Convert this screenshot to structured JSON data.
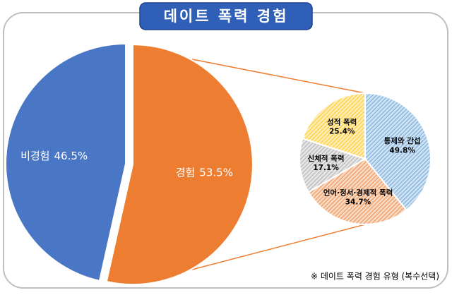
{
  "title": "데이트 폭력 경험",
  "note": "※ 데이트 폭력 경험 유형 (복수선택)",
  "chart_data": [
    {
      "type": "pie",
      "categories": [
        "비경험",
        "경험"
      ],
      "values": [
        46.5,
        53.5
      ],
      "value_labels": [
        "46.5%",
        "53.5%"
      ],
      "colors": [
        "#4a76c6",
        "#ed7d31"
      ]
    },
    {
      "type": "pie",
      "categories": [
        "통제와 간섭",
        "언어·정서·경제적 폭력",
        "신체적 폭력",
        "성적 폭력"
      ],
      "values": [
        49.8,
        34.7,
        17.1,
        25.4
      ],
      "value_labels": [
        "49.8%",
        "34.7%",
        "17.1%",
        "25.4%"
      ],
      "colors": [
        "#5b9bd5",
        "#ed7d31",
        "#a5a5a5",
        "#ffc000"
      ]
    }
  ]
}
